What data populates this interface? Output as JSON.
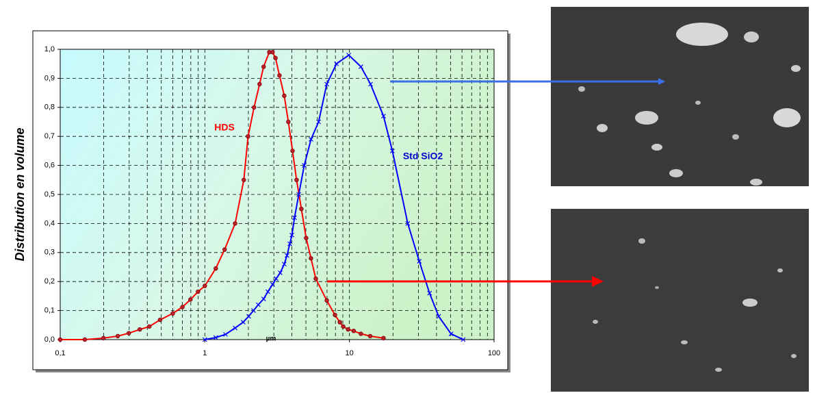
{
  "chart_data": {
    "type": "line",
    "y_label": "Distribution en volume",
    "x_label": "µm",
    "xscale": "log",
    "xlim": [
      0.1,
      100
    ],
    "xticks": [
      {
        "value": 0.1,
        "label": "0,1"
      },
      1,
      10,
      100
    ],
    "xminorticks": [
      0.2,
      0.3,
      0.4,
      0.5,
      0.6,
      0.7,
      0.8,
      0.9,
      2,
      3,
      4,
      5,
      6,
      7,
      8,
      9,
      20,
      30,
      40,
      50,
      60,
      70,
      80,
      90
    ],
    "ylim": [
      0,
      1
    ],
    "yticks": [
      {
        "value": 0,
        "label": "0,0"
      },
      {
        "value": 0.1,
        "label": "0,1"
      },
      {
        "value": 0.2,
        "label": "0,2"
      },
      {
        "value": 0.3,
        "label": "0,3"
      },
      {
        "value": 0.4,
        "label": "0,4"
      },
      {
        "value": 0.5,
        "label": "0,5"
      },
      {
        "value": 0.6,
        "label": "0,6"
      },
      {
        "value": 0.7,
        "label": "0,7"
      },
      {
        "value": 0.8,
        "label": "0,8"
      },
      {
        "value": 0.9,
        "label": "0,9"
      },
      {
        "value": 1,
        "label": "1,0"
      }
    ],
    "grid": true,
    "series": [
      {
        "name": "HDS",
        "color": "#ff0000",
        "marker": "circle",
        "x": [
          0.1,
          0.148,
          0.199,
          0.25,
          0.298,
          0.355,
          0.413,
          0.49,
          0.6,
          0.7,
          0.795,
          0.897,
          1.0,
          1.19,
          1.37,
          1.62,
          1.86,
          1.99,
          2.19,
          2.39,
          2.55,
          2.79,
          2.94,
          3.08,
          3.28,
          3.54,
          3.78,
          4.04,
          4.31,
          4.65,
          5.02,
          5.42,
          5.85,
          6.97,
          7.94,
          8.58,
          9.06,
          9.78,
          10.7,
          12.0,
          13.9,
          17.2
        ],
        "values": [
          0,
          0,
          0.005,
          0.012,
          0.022,
          0.035,
          0.045,
          0.068,
          0.09,
          0.112,
          0.138,
          0.165,
          0.185,
          0.245,
          0.31,
          0.4,
          0.55,
          0.7,
          0.8,
          0.88,
          0.94,
          0.99,
          0.99,
          0.97,
          0.91,
          0.84,
          0.75,
          0.65,
          0.55,
          0.45,
          0.35,
          0.28,
          0.21,
          0.135,
          0.085,
          0.06,
          0.045,
          0.035,
          0.03,
          0.02,
          0.012,
          0.005
        ]
      },
      {
        "name": "Std SiO2",
        "color": "#0000ff",
        "marker": "x",
        "x": [
          1.0,
          1.19,
          1.39,
          1.62,
          1.84,
          2.01,
          2.17,
          2.34,
          2.55,
          2.73,
          2.94,
          3.11,
          3.32,
          3.54,
          3.7,
          3.87,
          4.0,
          4.17,
          4.46,
          4.87,
          5.42,
          6.12,
          6.97,
          8.13,
          9.89,
          12.0,
          14.0,
          17.2,
          19.8,
          25.3,
          30.4,
          35.8,
          41.4,
          50.4,
          61.2
        ],
        "values": [
          0,
          0.007,
          0.018,
          0.04,
          0.06,
          0.08,
          0.1,
          0.12,
          0.14,
          0.165,
          0.19,
          0.21,
          0.23,
          0.26,
          0.29,
          0.33,
          0.36,
          0.42,
          0.5,
          0.6,
          0.69,
          0.75,
          0.88,
          0.95,
          0.98,
          0.94,
          0.88,
          0.77,
          0.65,
          0.4,
          0.27,
          0.16,
          0.08,
          0.02,
          0
        ]
      }
    ]
  }
}
